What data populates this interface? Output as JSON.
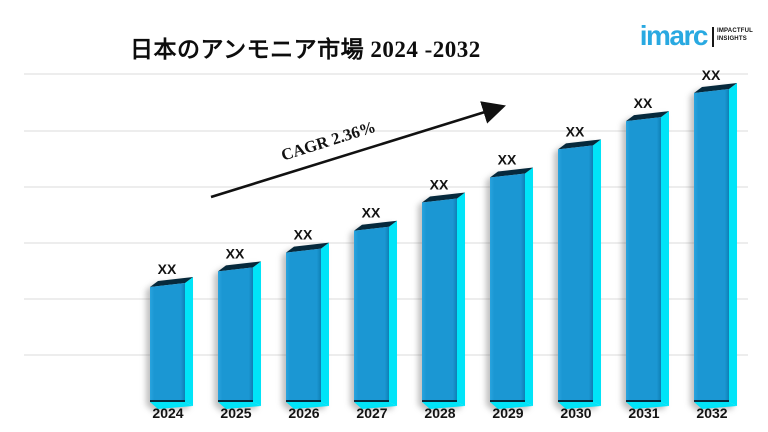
{
  "title": "日本のアンモニア市場 2024 -2032",
  "logo": {
    "brand": "imarc",
    "tagline_line1": "IMPACTFUL",
    "tagline_line2": "INSIGHTS",
    "brand_color": "#29A9E1"
  },
  "chart_data": {
    "type": "bar",
    "title": "日本のアンモニア市場 2024 -2032",
    "categories": [
      "2024",
      "2025",
      "2026",
      "2027",
      "2028",
      "2029",
      "2030",
      "2031",
      "2032"
    ],
    "value_labels": [
      "XX",
      "XX",
      "XX",
      "XX",
      "XX",
      "XX",
      "XX",
      "XX",
      "XX"
    ],
    "values_masked": true,
    "relative_height_pct": [
      38,
      43,
      49,
      56,
      65,
      73,
      82,
      91,
      100
    ],
    "annotation": "CAGR 2.36%",
    "bar_face_color": "#1B97D3",
    "bar_face_color_light": "#2AA4DE",
    "bar_face_color_dark": "#0F7FB5",
    "bar_side_color": "#00E4F8",
    "bar_top_color": "#06293C",
    "gridline_color": "#E2E2E2",
    "label_color": "#131313",
    "arrow_color": "#111111",
    "legend": "none",
    "y_axis": "hidden",
    "gridlines": "horizontal"
  }
}
